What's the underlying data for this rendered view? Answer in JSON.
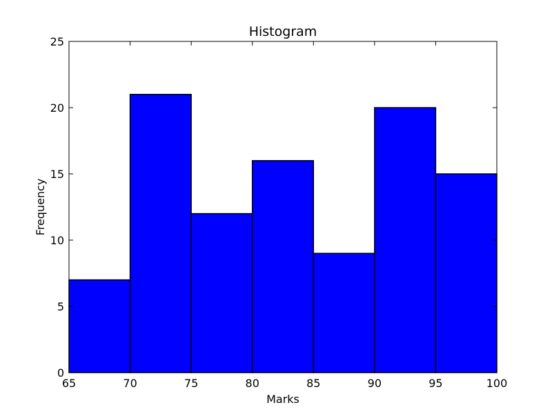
{
  "chart_data": {
    "type": "bar",
    "title": "Histogram",
    "xlabel": "Marks",
    "ylabel": "Frequency",
    "bins": [
      {
        "start": 65,
        "end": 70,
        "count": 7
      },
      {
        "start": 70,
        "end": 75,
        "count": 21
      },
      {
        "start": 75,
        "end": 80,
        "count": 12
      },
      {
        "start": 80,
        "end": 85,
        "count": 16
      },
      {
        "start": 85,
        "end": 90,
        "count": 9
      },
      {
        "start": 90,
        "end": 95,
        "count": 20
      },
      {
        "start": 95,
        "end": 100,
        "count": 15
      }
    ],
    "xlim": [
      65,
      100
    ],
    "ylim": [
      0,
      25
    ],
    "xticks": [
      "65",
      "70",
      "75",
      "80",
      "85",
      "90",
      "95",
      "100"
    ],
    "yticks": [
      "0",
      "5",
      "10",
      "15",
      "20",
      "25"
    ],
    "grid": false,
    "bar_color": "#0000ff",
    "edge_color": "#000000"
  }
}
